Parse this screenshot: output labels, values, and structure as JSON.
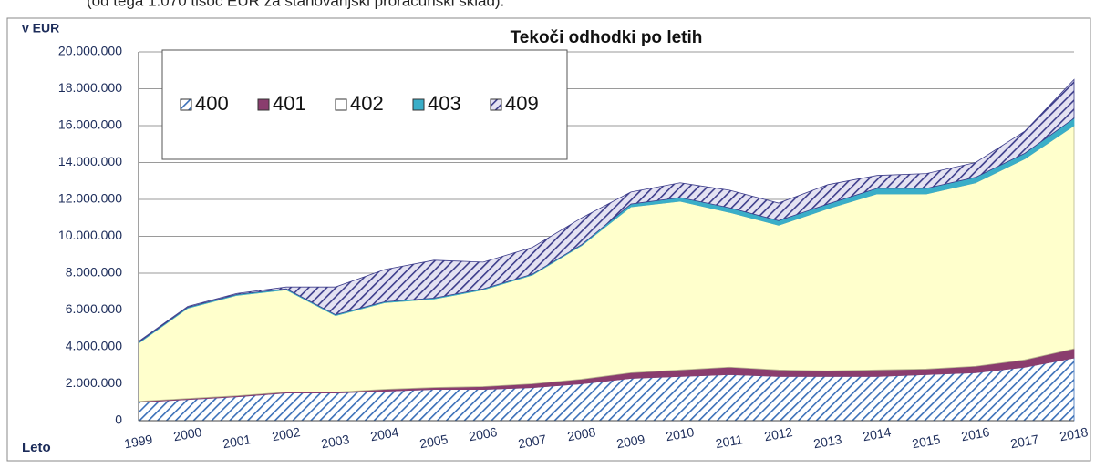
{
  "header_text": "(od tega 1.070 tisoč EUR za stanovanjski proračunski sklad).",
  "chart_data": {
    "type": "stacked_area",
    "title": "Tekoči odhodki po letih",
    "y_label": "v EUR",
    "x_label": "Leto",
    "categories": [
      "1999",
      "2000",
      "2001",
      "2002",
      "2003",
      "2004",
      "2005",
      "2006",
      "2007",
      "2008",
      "2009",
      "2010",
      "2011",
      "2012",
      "2013",
      "2014",
      "2015",
      "2016",
      "2017",
      "2018"
    ],
    "series": [
      {
        "name": "400",
        "color": "#3a6fb8",
        "pattern": "hatch",
        "values": [
          1000000,
          1150000,
          1300000,
          1500000,
          1500000,
          1600000,
          1700000,
          1700000,
          1800000,
          2000000,
          2300000,
          2400000,
          2500000,
          2400000,
          2400000,
          2400000,
          2500000,
          2600000,
          2900000,
          3400000
        ]
      },
      {
        "name": "401",
        "color": "#8a3d6e",
        "values": [
          50000,
          50000,
          50000,
          50000,
          50000,
          100000,
          100000,
          150000,
          200000,
          250000,
          300000,
          350000,
          400000,
          350000,
          300000,
          350000,
          300000,
          350000,
          400000,
          500000
        ]
      },
      {
        "name": "402",
        "color": "#ffffcc",
        "values": [
          3150000,
          4900000,
          5450000,
          5550000,
          4150000,
          4700000,
          4800000,
          5250000,
          5900000,
          7250000,
          9000000,
          9150000,
          8400000,
          7850000,
          8800000,
          9550000,
          9500000,
          9950000,
          10900000,
          12100000
        ]
      },
      {
        "name": "403",
        "color": "#3aaec8",
        "values": [
          50000,
          50000,
          50000,
          50000,
          50000,
          50000,
          50000,
          50000,
          50000,
          50000,
          150000,
          200000,
          250000,
          250000,
          250000,
          300000,
          300000,
          300000,
          300000,
          400000
        ]
      },
      {
        "name": "409",
        "color": "#3c3c8a",
        "pattern": "hatch",
        "values": [
          50000,
          50000,
          50000,
          100000,
          1500000,
          1750000,
          2050000,
          1450000,
          1450000,
          1450000,
          650000,
          800000,
          950000,
          950000,
          1050000,
          700000,
          800000,
          800000,
          1200000,
          2100000
        ]
      }
    ],
    "ylim": [
      0,
      20000000
    ],
    "yticks": [
      0,
      {
        "value": 2000000,
        "label": "2.000.000"
      },
      {
        "value": 4000000,
        "label": "4.000.000"
      },
      {
        "value": 6000000,
        "label": "6.000.000"
      },
      {
        "value": 8000000,
        "label": "8.000.000"
      },
      {
        "value": 10000000,
        "label": "10.000.000"
      },
      {
        "value": 12000000,
        "label": "12.000.000"
      },
      {
        "value": 14000000,
        "label": "14.000.000"
      },
      {
        "value": 16000000,
        "label": "16.000.000"
      },
      {
        "value": 18000000,
        "label": "18.000.000"
      },
      {
        "value": 20000000,
        "label": "20.000.000"
      }
    ],
    "grid": true,
    "legend": "top-left"
  }
}
